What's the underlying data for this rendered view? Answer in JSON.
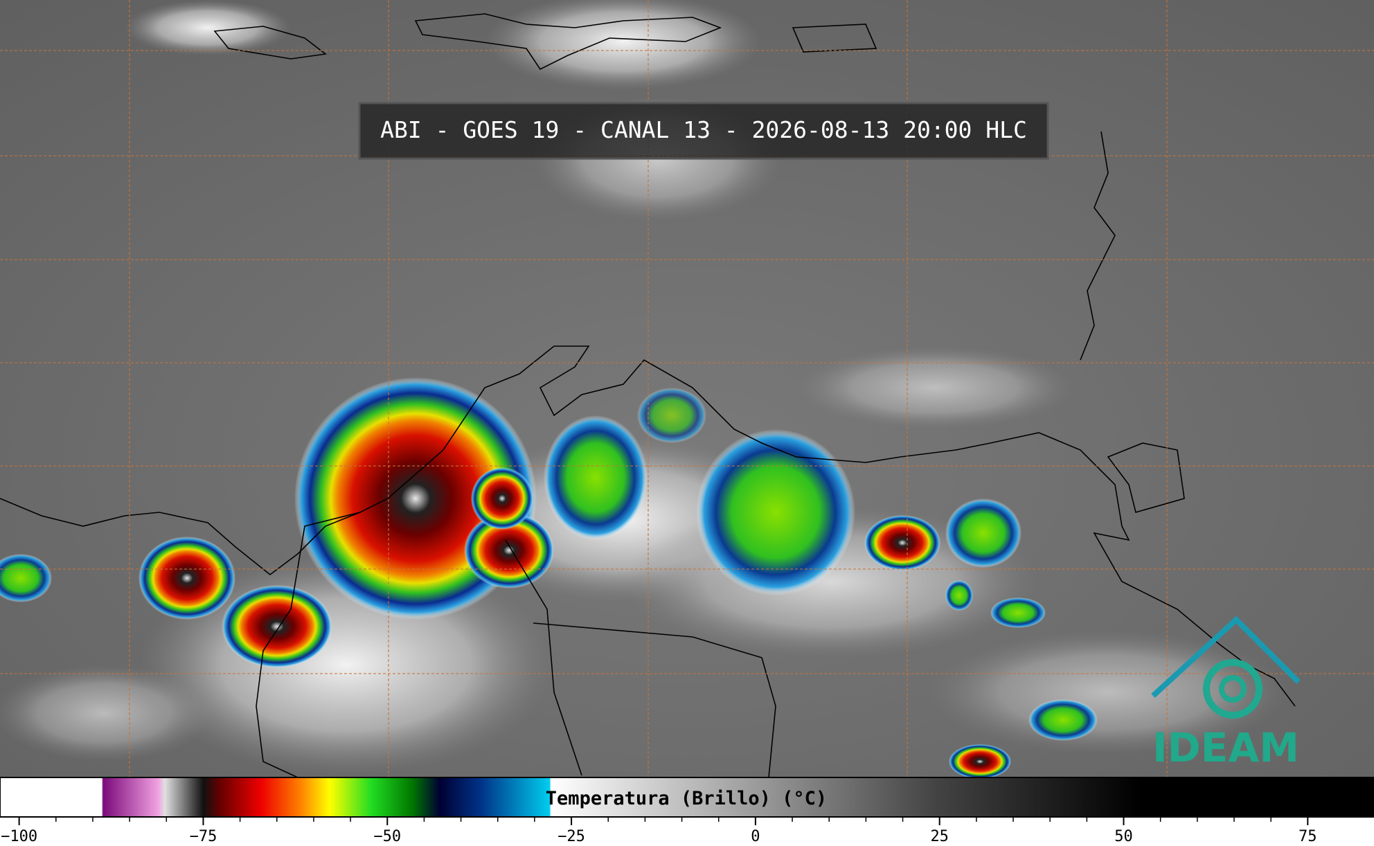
{
  "title": "ABI - GOES 19 - CANAL 13 - 2026-08-13 20:00 HLC",
  "logo": "IDEAM",
  "colorbar": {
    "label": "Temperatura (Brillo) (°C)",
    "range": [
      -102.6,
      84
    ],
    "ticks": [
      {
        "value": -100,
        "label": "−100"
      },
      {
        "value": -75,
        "label": "−75"
      },
      {
        "value": -50,
        "label": "−50"
      },
      {
        "value": -25,
        "label": "−25"
      },
      0,
      25,
      50,
      75
    ]
  }
}
